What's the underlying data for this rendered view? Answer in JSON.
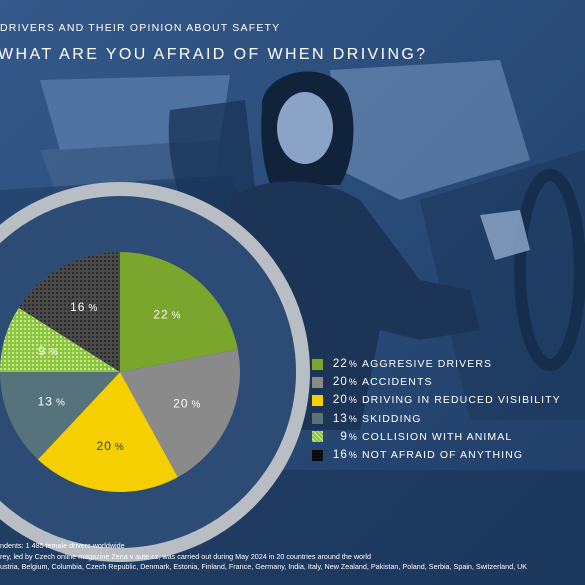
{
  "header": "DRIVERS AND THEIR OPINION ABOUT SAFETY",
  "chart_data": {
    "type": "pie",
    "title": "WHAT ARE YOU AFRAID OF WHEN DRIVING?",
    "percent_symbol": "%",
    "slices": [
      {
        "value": 22,
        "label": "AGGRESIVE DRIVERS",
        "color": "#7ba62d",
        "pattern": "solid"
      },
      {
        "value": 20,
        "label": "ACCIDENTS",
        "color": "#8a8a8a",
        "pattern": "solid"
      },
      {
        "value": 20,
        "label": "DRIVING IN REDUCED VISIBILITY",
        "color": "#f5cf00",
        "pattern": "solid"
      },
      {
        "value": 13,
        "label": "SKIDDING",
        "color": "#56727a",
        "pattern": "solid"
      },
      {
        "value": 9,
        "label": "COLLISION WITH ANIMAL",
        "color": "#8cc63f",
        "pattern": "dots"
      },
      {
        "value": 16,
        "label": "NOT AFRAID OF ANYTHING",
        "color": "#3a3a3a",
        "pattern": "grid"
      }
    ],
    "legend_position": "right"
  },
  "footer": {
    "line1": "ndents: 1 485 female drivers worldwide",
    "line2": "rey, led by Czech online magazine Zena v aute.cz, was carried out during May 2024 in 20 countries around the world",
    "line3": "ustria, Belgium, Columbia, Czech Republic, Denmark, Estonia, Finland, France, Germany, India, Italy, New Zealand, Pakistan, Poland, Serbia, Spain, Switzerland, UK"
  }
}
